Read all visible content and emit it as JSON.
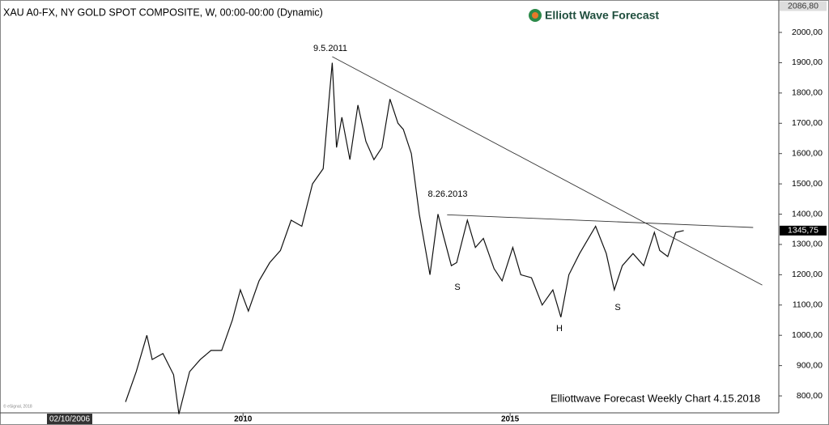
{
  "chart_data": {
    "type": "line",
    "title": "XAU A0-FX, NY GOLD SPOT COMPOSITE, W, 00:00-00:00 (Dynamic)",
    "logo_text": "Elliott Wave Forecast",
    "footer": "Elliottwave Forecast Weekly Chart 4.15.2018",
    "copyright": "© eSignal, 2018",
    "x_cursor_label": "02/10/2006",
    "annotations": [
      "9.5.2011",
      "8.26.2013",
      "S",
      "H",
      "S"
    ],
    "color": "#111111",
    "x": [
      2007.8,
      2008.0,
      2008.2,
      2008.3,
      2008.5,
      2008.7,
      2008.8,
      2009.0,
      2009.2,
      2009.4,
      2009.6,
      2009.8,
      2009.95,
      2010.1,
      2010.3,
      2010.5,
      2010.7,
      2010.9,
      2011.1,
      2011.3,
      2011.5,
      2011.62,
      2011.67,
      2011.75,
      2011.85,
      2012.0,
      2012.15,
      2012.3,
      2012.45,
      2012.6,
      2012.75,
      2012.9,
      2013.0,
      2013.15,
      2013.3,
      2013.45,
      2013.5,
      2013.65,
      2013.75,
      2013.9,
      2014.0,
      2014.2,
      2014.35,
      2014.5,
      2014.7,
      2014.85,
      2015.05,
      2015.2,
      2015.4,
      2015.6,
      2015.8,
      2015.95,
      2016.1,
      2016.3,
      2016.5,
      2016.6,
      2016.8,
      2016.95,
      2017.1,
      2017.3,
      2017.5,
      2017.7,
      2017.8,
      2017.95,
      2018.1,
      2018.25
    ],
    "values": [
      780,
      880,
      1000,
      920,
      940,
      870,
      740,
      880,
      920,
      950,
      950,
      1050,
      1150,
      1080,
      1180,
      1240,
      1280,
      1380,
      1360,
      1500,
      1550,
      1800,
      1900,
      1620,
      1720,
      1580,
      1760,
      1640,
      1580,
      1620,
      1780,
      1700,
      1680,
      1600,
      1400,
      1250,
      1200,
      1400,
      1330,
      1230,
      1240,
      1380,
      1290,
      1320,
      1220,
      1180,
      1290,
      1200,
      1190,
      1100,
      1150,
      1060,
      1200,
      1270,
      1330,
      1360,
      1270,
      1150,
      1230,
      1270,
      1230,
      1340,
      1280,
      1260,
      1340,
      1345.75
    ],
    "trendlines": [
      {
        "x": [
          2011.67,
          2019.72
        ],
        "values": [
          1920,
          1166
        ]
      },
      {
        "x": [
          2013.82,
          2019.55
        ],
        "values": [
          1398,
          1356
        ]
      }
    ],
    "price_markers": [
      {
        "value": 2086.8,
        "label": "2086,80"
      },
      {
        "value": 1345.75,
        "label": "1345,75"
      }
    ],
    "xlim": [
      2005.45,
      2020.03
    ],
    "xticks": [
      2010,
      2015
    ],
    "ylim": [
      744,
      2107
    ],
    "yticks": [
      {
        "value": 800,
        "label": "800,00"
      },
      {
        "value": 900,
        "label": "900,00"
      },
      {
        "value": 1000,
        "label": "1000,00"
      },
      {
        "value": 1100,
        "label": "1100,00"
      },
      {
        "value": 1200,
        "label": "1200,00"
      },
      {
        "value": 1300,
        "label": "1300,00"
      },
      {
        "value": 1400,
        "label": "1400,00"
      },
      {
        "value": 1500,
        "label": "1500,00"
      },
      {
        "value": 1600,
        "label": "1600,00"
      },
      {
        "value": 1700,
        "label": "1700,00"
      },
      {
        "value": 1800,
        "label": "1800,00"
      },
      {
        "value": 1900,
        "label": "1900,00"
      },
      {
        "value": 2000,
        "label": "2000,00"
      }
    ]
  }
}
